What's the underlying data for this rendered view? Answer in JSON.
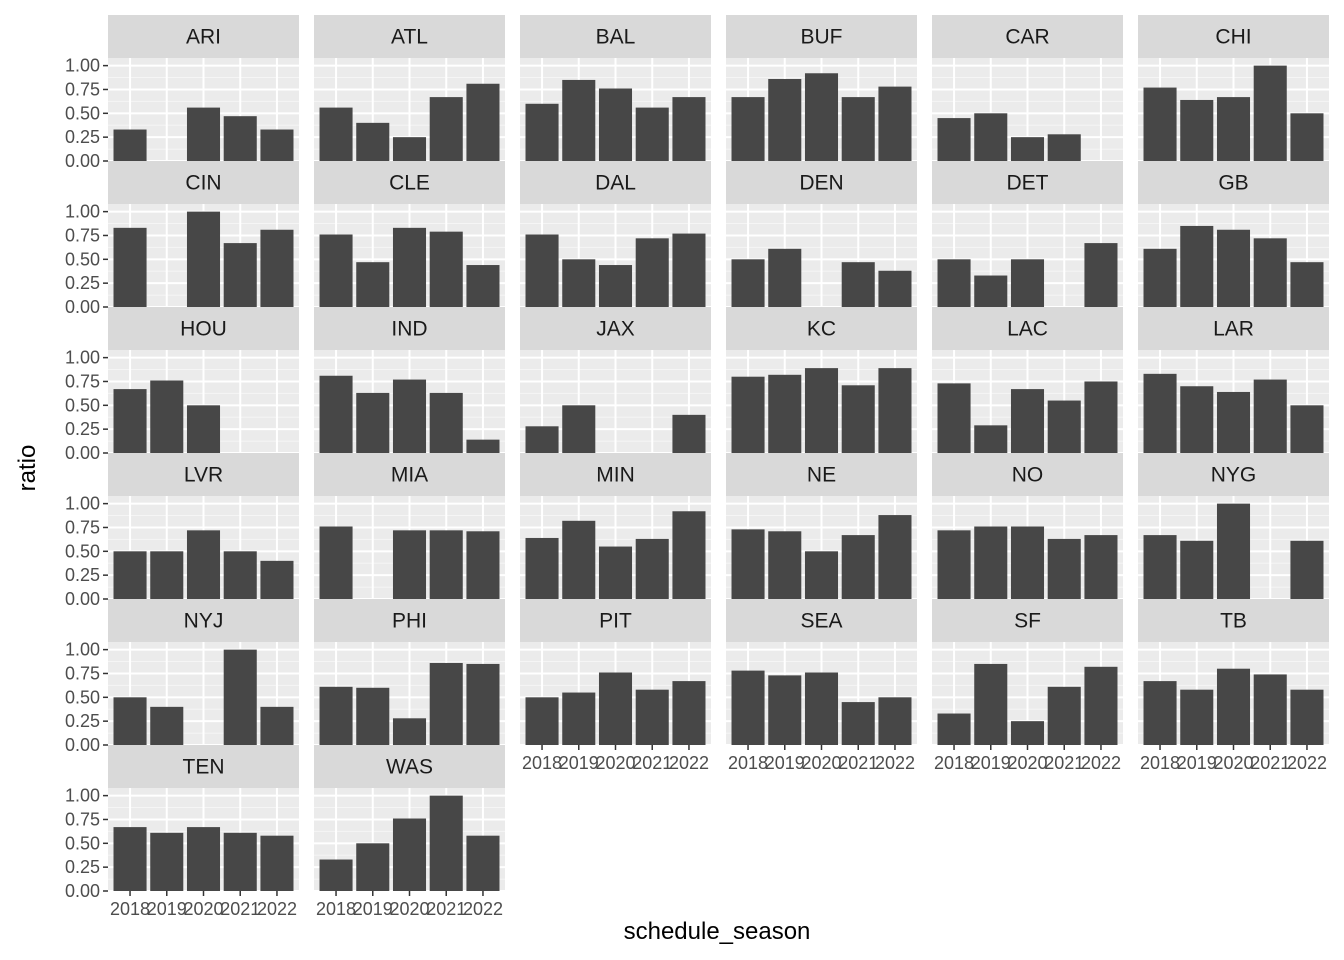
{
  "chart_data": {
    "type": "bar",
    "xlabel": "schedule_season",
    "ylabel": "ratio",
    "ylim": [
      0,
      1.08
    ],
    "y_ticks": [
      0,
      0.25,
      0.5,
      0.75,
      1.0
    ],
    "y_tick_labels": [
      "0.00",
      "0.25",
      "0.50",
      "0.75",
      "1.00"
    ],
    "x_categories": [
      2018,
      2019,
      2020,
      2021,
      2022
    ],
    "x_tick_labels": [
      "2018",
      "2019",
      "2020",
      "2021",
      "2022"
    ],
    "grid": true,
    "facet_columns": 6,
    "colors": {
      "bar": "#474747",
      "panel_background": "#ebebeb",
      "strip_background": "#d9d9d9",
      "grid_major": "#ffffff",
      "grid_minor": "#f5f5f5"
    },
    "facets": [
      {
        "team": "ARI",
        "values": [
          0.33,
          null,
          0.56,
          0.47,
          0.33
        ]
      },
      {
        "team": "ATL",
        "values": [
          0.56,
          0.4,
          0.25,
          0.67,
          0.81
        ]
      },
      {
        "team": "BAL",
        "values": [
          0.6,
          0.85,
          0.76,
          0.56,
          0.67
        ]
      },
      {
        "team": "BUF",
        "values": [
          0.67,
          0.86,
          0.92,
          0.67,
          0.78
        ]
      },
      {
        "team": "CAR",
        "values": [
          0.45,
          0.5,
          0.25,
          0.28,
          null
        ]
      },
      {
        "team": "CHI",
        "values": [
          0.77,
          0.64,
          0.67,
          1.0,
          0.5
        ]
      },
      {
        "team": "CIN",
        "values": [
          0.83,
          null,
          1.0,
          0.67,
          0.81
        ]
      },
      {
        "team": "CLE",
        "values": [
          0.76,
          0.47,
          0.83,
          0.79,
          0.44
        ]
      },
      {
        "team": "DAL",
        "values": [
          0.76,
          0.5,
          0.44,
          0.72,
          0.77
        ]
      },
      {
        "team": "DEN",
        "values": [
          0.5,
          0.61,
          null,
          0.47,
          0.38
        ]
      },
      {
        "team": "DET",
        "values": [
          0.5,
          0.33,
          0.5,
          null,
          0.67
        ]
      },
      {
        "team": "GB",
        "values": [
          0.61,
          0.85,
          0.81,
          0.72,
          0.47
        ]
      },
      {
        "team": "HOU",
        "values": [
          0.67,
          0.76,
          0.5,
          null,
          null
        ]
      },
      {
        "team": "IND",
        "values": [
          0.81,
          0.63,
          0.77,
          0.63,
          0.14
        ]
      },
      {
        "team": "JAX",
        "values": [
          0.28,
          0.5,
          null,
          null,
          0.4
        ]
      },
      {
        "team": "KC",
        "values": [
          0.8,
          0.82,
          0.89,
          0.71,
          0.89
        ]
      },
      {
        "team": "LAC",
        "values": [
          0.73,
          0.29,
          0.67,
          0.55,
          0.75
        ]
      },
      {
        "team": "LAR",
        "values": [
          0.83,
          0.7,
          0.64,
          0.77,
          0.5
        ]
      },
      {
        "team": "LVR",
        "values": [
          0.5,
          0.5,
          0.72,
          0.5,
          0.4
        ]
      },
      {
        "team": "MIA",
        "values": [
          0.76,
          null,
          0.72,
          0.72,
          0.71
        ]
      },
      {
        "team": "MIN",
        "values": [
          0.64,
          0.82,
          0.55,
          0.63,
          0.92
        ]
      },
      {
        "team": "NE",
        "values": [
          0.73,
          0.71,
          0.5,
          0.67,
          0.88
        ]
      },
      {
        "team": "NO",
        "values": [
          0.72,
          0.76,
          0.76,
          0.63,
          0.67
        ]
      },
      {
        "team": "NYG",
        "values": [
          0.67,
          0.61,
          1.0,
          null,
          0.61
        ]
      },
      {
        "team": "NYJ",
        "values": [
          0.5,
          0.4,
          null,
          1.0,
          0.4
        ]
      },
      {
        "team": "PHI",
        "values": [
          0.61,
          0.6,
          0.28,
          0.86,
          0.85
        ]
      },
      {
        "team": "PIT",
        "values": [
          0.5,
          0.55,
          0.76,
          0.58,
          0.67
        ]
      },
      {
        "team": "SEA",
        "values": [
          0.78,
          0.73,
          0.76,
          0.45,
          0.5
        ]
      },
      {
        "team": "SF",
        "values": [
          0.33,
          0.85,
          0.25,
          0.61,
          0.82
        ]
      },
      {
        "team": "TB",
        "values": [
          0.67,
          0.58,
          0.8,
          0.74,
          0.58
        ]
      },
      {
        "team": "TEN",
        "values": [
          0.67,
          0.61,
          0.67,
          0.61,
          0.58
        ]
      },
      {
        "team": "WAS",
        "values": [
          0.33,
          0.5,
          0.76,
          1.0,
          0.58
        ]
      }
    ]
  }
}
